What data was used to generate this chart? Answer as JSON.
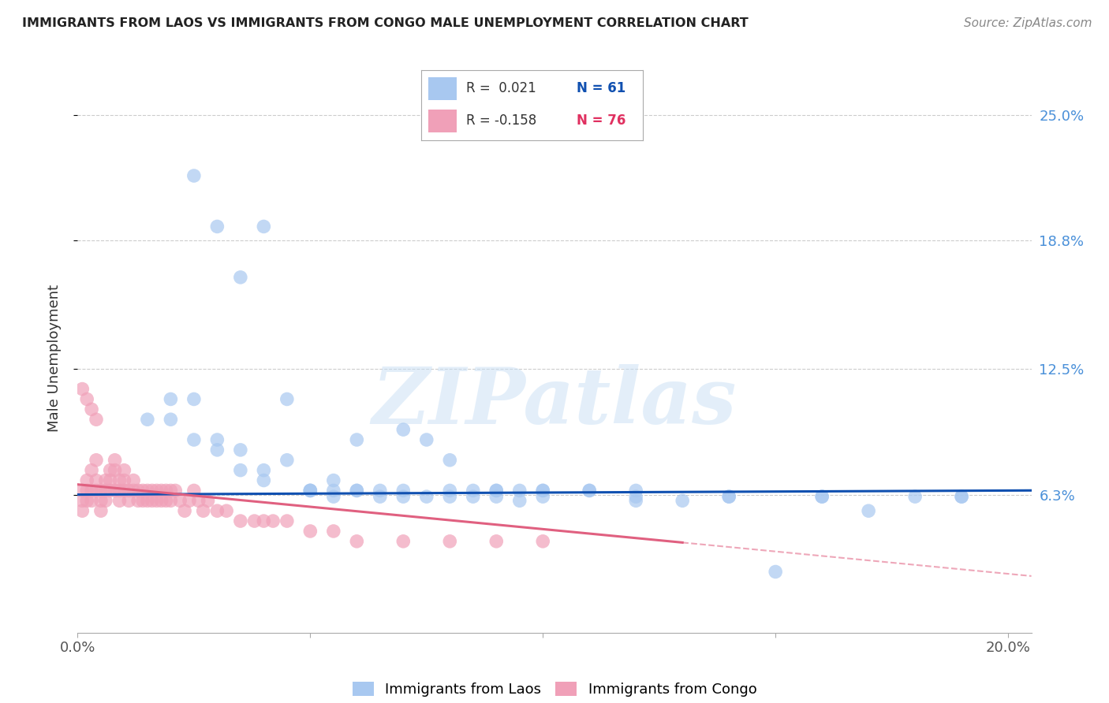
{
  "title": "IMMIGRANTS FROM LAOS VS IMMIGRANTS FROM CONGO MALE UNEMPLOYMENT CORRELATION CHART",
  "source": "Source: ZipAtlas.com",
  "ylabel": "Male Unemployment",
  "xlim": [
    0.0,
    0.205
  ],
  "ylim": [
    -0.005,
    0.265
  ],
  "xtick_vals": [
    0.0,
    0.05,
    0.1,
    0.15,
    0.2
  ],
  "xtick_labels": [
    "0.0%",
    "",
    "",
    "",
    "20.0%"
  ],
  "ytick_vals": [
    0.063,
    0.125,
    0.188,
    0.25
  ],
  "ytick_labels": [
    "6.3%",
    "12.5%",
    "18.8%",
    "25.0%"
  ],
  "laos_R": 0.021,
  "laos_N": 61,
  "congo_R": -0.158,
  "congo_N": 76,
  "laos_color": "#a8c8f0",
  "congo_color": "#f0a0b8",
  "laos_line_color": "#1050b0",
  "congo_line_color": "#e06080",
  "watermark_color": "#c8dff5",
  "laos_x": [
    0.025,
    0.03,
    0.035,
    0.04,
    0.045,
    0.05,
    0.055,
    0.06,
    0.065,
    0.07,
    0.075,
    0.08,
    0.085,
    0.09,
    0.095,
    0.1,
    0.11,
    0.12,
    0.13,
    0.14,
    0.15,
    0.16,
    0.17,
    0.18,
    0.19,
    0.015,
    0.02,
    0.025,
    0.03,
    0.035,
    0.04,
    0.05,
    0.055,
    0.06,
    0.07,
    0.08,
    0.09,
    0.1,
    0.11,
    0.12,
    0.02,
    0.025,
    0.03,
    0.035,
    0.04,
    0.045,
    0.05,
    0.055,
    0.06,
    0.065,
    0.07,
    0.075,
    0.08,
    0.085,
    0.09,
    0.095,
    0.1,
    0.12,
    0.14,
    0.16,
    0.19
  ],
  "laos_y": [
    0.22,
    0.195,
    0.17,
    0.195,
    0.11,
    0.065,
    0.07,
    0.065,
    0.065,
    0.065,
    0.09,
    0.065,
    0.065,
    0.065,
    0.06,
    0.065,
    0.065,
    0.06,
    0.06,
    0.062,
    0.025,
    0.062,
    0.055,
    0.062,
    0.062,
    0.1,
    0.1,
    0.09,
    0.085,
    0.075,
    0.07,
    0.065,
    0.065,
    0.09,
    0.095,
    0.08,
    0.065,
    0.065,
    0.065,
    0.065,
    0.11,
    0.11,
    0.09,
    0.085,
    0.075,
    0.08,
    0.065,
    0.062,
    0.065,
    0.062,
    0.062,
    0.062,
    0.062,
    0.062,
    0.062,
    0.065,
    0.062,
    0.062,
    0.062,
    0.062,
    0.062
  ],
  "congo_x": [
    0.001,
    0.001,
    0.001,
    0.002,
    0.002,
    0.002,
    0.003,
    0.003,
    0.003,
    0.004,
    0.004,
    0.004,
    0.005,
    0.005,
    0.005,
    0.006,
    0.006,
    0.006,
    0.007,
    0.007,
    0.007,
    0.008,
    0.008,
    0.008,
    0.009,
    0.009,
    0.009,
    0.01,
    0.01,
    0.01,
    0.011,
    0.011,
    0.012,
    0.012,
    0.013,
    0.013,
    0.014,
    0.014,
    0.015,
    0.015,
    0.016,
    0.016,
    0.017,
    0.017,
    0.018,
    0.018,
    0.019,
    0.019,
    0.02,
    0.02,
    0.021,
    0.022,
    0.023,
    0.024,
    0.025,
    0.026,
    0.027,
    0.028,
    0.03,
    0.032,
    0.035,
    0.038,
    0.04,
    0.042,
    0.045,
    0.05,
    0.055,
    0.06,
    0.07,
    0.08,
    0.09,
    0.1,
    0.001,
    0.002,
    0.003,
    0.004
  ],
  "congo_y": [
    0.065,
    0.06,
    0.055,
    0.07,
    0.065,
    0.06,
    0.075,
    0.065,
    0.06,
    0.08,
    0.07,
    0.065,
    0.065,
    0.06,
    0.055,
    0.07,
    0.065,
    0.06,
    0.075,
    0.07,
    0.065,
    0.08,
    0.075,
    0.065,
    0.07,
    0.065,
    0.06,
    0.075,
    0.07,
    0.065,
    0.065,
    0.06,
    0.07,
    0.065,
    0.065,
    0.06,
    0.065,
    0.06,
    0.065,
    0.06,
    0.065,
    0.06,
    0.065,
    0.06,
    0.065,
    0.06,
    0.065,
    0.06,
    0.065,
    0.06,
    0.065,
    0.06,
    0.055,
    0.06,
    0.065,
    0.06,
    0.055,
    0.06,
    0.055,
    0.055,
    0.05,
    0.05,
    0.05,
    0.05,
    0.05,
    0.045,
    0.045,
    0.04,
    0.04,
    0.04,
    0.04,
    0.04,
    0.115,
    0.11,
    0.105,
    0.1
  ]
}
